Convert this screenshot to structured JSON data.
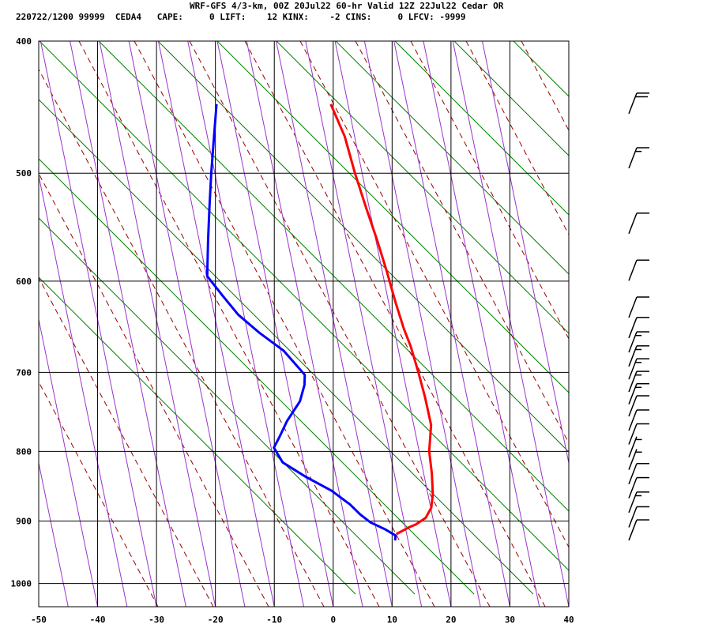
{
  "header": {
    "line1": "WRF-GFS 4/3-km, 00Z 20Jul22 60-hr Valid 12Z 22Jul22 Cedar OR",
    "line2": "220722/1200 99999  CEDA4   CAPE:     0 LIFT:    12 KINX:    -2 CINS:     0 LFCV: -9999"
  },
  "colors": {
    "temperature": "#ff0000",
    "dewpoint": "#0000ff",
    "isotherm_skewed": "#9933cc",
    "dry_adiabat": "#990000",
    "moist_adiabat": "#008000",
    "grid": "#000000"
  },
  "chart_data": {
    "type": "line",
    "chart_kind": "skew-T log-P sounding",
    "x_axis": {
      "ticks": [
        -50,
        -40,
        -30,
        -20,
        -10,
        0,
        10,
        20,
        30,
        40
      ],
      "range": [
        -50,
        40
      ]
    },
    "y_axis": {
      "ticks": [
        400,
        500,
        600,
        700,
        800,
        900,
        1000
      ],
      "range": [
        400,
        1040
      ],
      "scale": "log"
    },
    "grid": true,
    "series": [
      {
        "key": "temperature",
        "points": [
          [
            -17.9,
            445
          ],
          [
            -14.4,
            470
          ],
          [
            -11.4,
            500
          ],
          [
            -8.3,
            530
          ],
          [
            -5.3,
            560
          ],
          [
            -2.6,
            590
          ],
          [
            0,
            622
          ],
          [
            2.3,
            650
          ],
          [
            4.1,
            670
          ],
          [
            6.3,
            700
          ],
          [
            8.3,
            730
          ],
          [
            10.3,
            765
          ],
          [
            10.9,
            800
          ],
          [
            12.1,
            830
          ],
          [
            13.0,
            860
          ],
          [
            13.2,
            880
          ],
          [
            12.6,
            895
          ],
          [
            11.2,
            905
          ],
          [
            10.0,
            910
          ],
          [
            8.2,
            920
          ]
        ]
      },
      {
        "key": "dewpoint",
        "points": [
          [
            -37.3,
            445
          ],
          [
            -36.6,
            470
          ],
          [
            -35.8,
            500
          ],
          [
            -34.9,
            530
          ],
          [
            -34.0,
            560
          ],
          [
            -32.9,
            595
          ],
          [
            -29.6,
            615
          ],
          [
            -26.3,
            635
          ],
          [
            -22.0,
            655
          ],
          [
            -17.3,
            675
          ],
          [
            -12.9,
            703
          ],
          [
            -12.6,
            715
          ],
          [
            -12.8,
            735
          ],
          [
            -14.3,
            760
          ],
          [
            -15.0,
            780
          ],
          [
            -15.6,
            795
          ],
          [
            -13.6,
            815
          ],
          [
            -9.2,
            835
          ],
          [
            -4.3,
            855
          ],
          [
            -0.7,
            875
          ],
          [
            1.4,
            890
          ],
          [
            3.4,
            902
          ],
          [
            6.0,
            912
          ],
          [
            8.1,
            922
          ],
          [
            8.2,
            930
          ]
        ]
      }
    ],
    "wind_barbs": [
      {
        "p": 445,
        "kt": 20
      },
      {
        "p": 488,
        "kt": 15
      },
      {
        "p": 545,
        "kt": 10
      },
      {
        "p": 590,
        "kt": 10
      },
      {
        "p": 628,
        "kt": 10
      },
      {
        "p": 650,
        "kt": 10
      },
      {
        "p": 666,
        "kt": 15
      },
      {
        "p": 682,
        "kt": 15
      },
      {
        "p": 697,
        "kt": 15
      },
      {
        "p": 712,
        "kt": 15
      },
      {
        "p": 727,
        "kt": 15
      },
      {
        "p": 742,
        "kt": 10
      },
      {
        "p": 760,
        "kt": 10
      },
      {
        "p": 778,
        "kt": 10
      },
      {
        "p": 795,
        "kt": 5
      },
      {
        "p": 812,
        "kt": 5
      },
      {
        "p": 832,
        "kt": 10
      },
      {
        "p": 852,
        "kt": 10
      },
      {
        "p": 873,
        "kt": 15
      },
      {
        "p": 895,
        "kt": 10
      },
      {
        "p": 915,
        "kt": 10
      }
    ]
  }
}
